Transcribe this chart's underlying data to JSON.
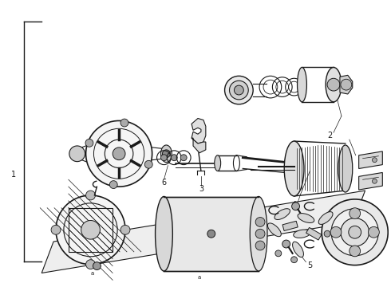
{
  "bg_color": "#ffffff",
  "line_color": "#1a1a1a",
  "label_color": "#111111",
  "fig_width": 4.9,
  "fig_height": 3.6,
  "dpi": 100
}
